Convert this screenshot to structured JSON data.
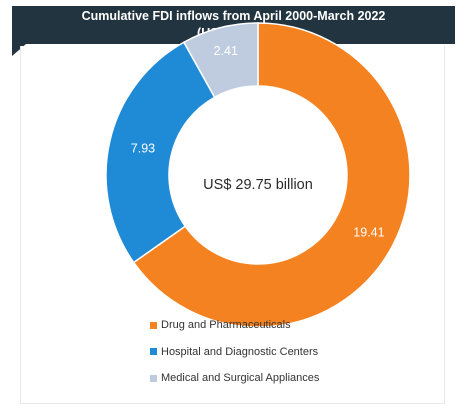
{
  "chart_data": {
    "type": "pie",
    "title_lines": [
      "Cumulative FDI inflows from April 2000-March 2022",
      "(US$ billion)"
    ],
    "center_label": "US$ 29.75 billion",
    "categories": [
      "Drug and Pharmaceuticals",
      "Hospital and Diagnostic Centers",
      "Medical and Surgical Appliances"
    ],
    "values": [
      19.41,
      7.93,
      2.41
    ],
    "value_labels": [
      "19.41",
      "7.93",
      "2.41"
    ],
    "colors": [
      "#f58220",
      "#1f8ad6",
      "#bfcce0"
    ],
    "legend_position": "bottom"
  }
}
